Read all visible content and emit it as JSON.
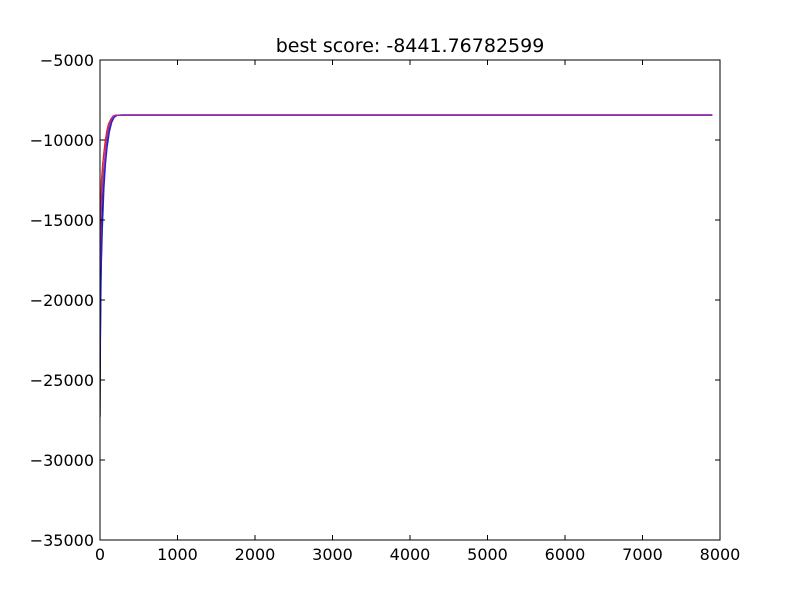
{
  "chart_data": {
    "type": "line",
    "title": "best score: -8441.76782599",
    "xlabel": "",
    "ylabel": "",
    "xlim": [
      0,
      8000
    ],
    "ylim": [
      -35000,
      -5000
    ],
    "x_ticks": [
      0,
      1000,
      2000,
      3000,
      4000,
      5000,
      6000,
      7000,
      8000
    ],
    "y_ticks": [
      -5000,
      -10000,
      -15000,
      -20000,
      -25000,
      -30000,
      -35000
    ],
    "x_tick_labels": [
      "0",
      "1000",
      "2000",
      "3000",
      "4000",
      "5000",
      "6000",
      "7000",
      "8000"
    ],
    "y_tick_labels": [
      "−5000",
      "−10000",
      "−15000",
      "−20000",
      "−25000",
      "−30000",
      "−35000"
    ],
    "grid": false,
    "legend": false,
    "series": [
      {
        "color": "#000000",
        "x": [
          0,
          5,
          10,
          20,
          30,
          40,
          60,
          80,
          100,
          130,
          160,
          200,
          300,
          1000,
          3000,
          5000,
          7000,
          7900
        ],
        "y": [
          -27300,
          -22000,
          -19000,
          -16500,
          -14800,
          -13500,
          -11800,
          -10600,
          -9700,
          -9000,
          -8600,
          -8460,
          -8442,
          -8442,
          -8442,
          -8442,
          -8442,
          -8442
        ]
      },
      {
        "color": "#d62728",
        "x": [
          0,
          10,
          20,
          35,
          50,
          70,
          90,
          110,
          140,
          170,
          200,
          300,
          1000,
          3000,
          5000,
          7000,
          7900
        ],
        "y": [
          -20000,
          -14500,
          -12500,
          -11500,
          -10800,
          -10000,
          -9400,
          -9000,
          -8700,
          -8500,
          -8450,
          -8442,
          -8442,
          -8442,
          -8442,
          -8442,
          -8442
        ]
      },
      {
        "color": "#2222cc",
        "x": [
          0,
          15,
          30,
          50,
          70,
          90,
          120,
          150,
          180,
          220,
          300,
          1000,
          3000,
          5000,
          7000,
          7900
        ],
        "y": [
          -24000,
          -18000,
          -15500,
          -13000,
          -11500,
          -10500,
          -9500,
          -8900,
          -8600,
          -8460,
          -8442,
          -8442,
          -8442,
          -8442,
          -8442,
          -8442
        ]
      },
      {
        "color": "#9a2fb0",
        "x": [
          0,
          10,
          25,
          45,
          65,
          85,
          110,
          140,
          170,
          210,
          300,
          1000,
          3000,
          5000,
          7000,
          7900
        ],
        "y": [
          -18000,
          -15000,
          -13500,
          -12000,
          -11000,
          -10000,
          -9300,
          -8800,
          -8550,
          -8450,
          -8442,
          -8442,
          -8442,
          -8442,
          -8442,
          -8442
        ]
      }
    ]
  }
}
